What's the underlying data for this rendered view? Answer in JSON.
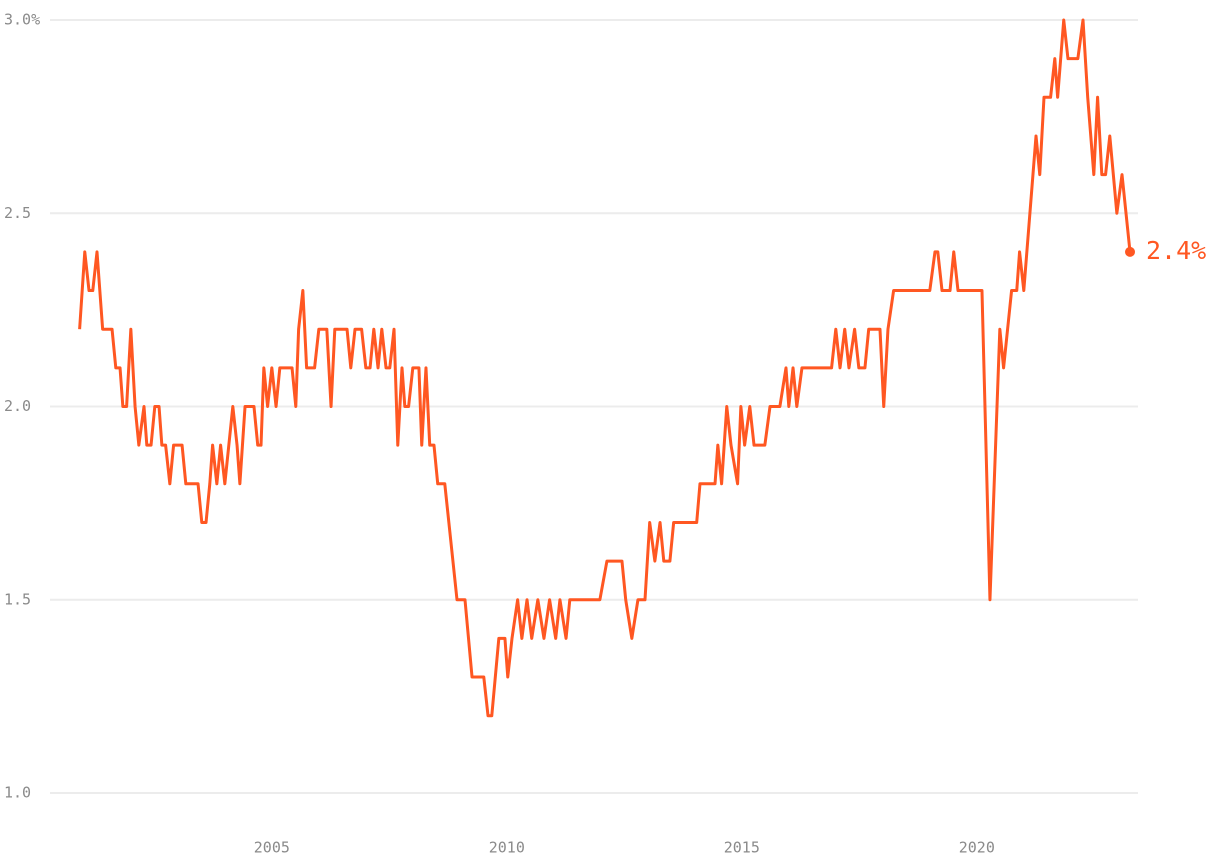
{
  "chart_data": {
    "type": "line",
    "color": "#ff5722",
    "grid": true,
    "xlim": [
      2000.28,
      2023.43
    ],
    "xticks": [
      2005,
      2010,
      2015,
      2020
    ],
    "ylim": [
      1,
      3
    ],
    "yticks": [
      {
        "value": 1,
        "label": "1.0"
      },
      1.5,
      {
        "value": 2,
        "label": "2.0"
      },
      2.5,
      {
        "value": 3,
        "label": "3.0%"
      }
    ],
    "last_value_label": "2.4%",
    "x": [
      2000.91,
      2001.02,
      2001.11,
      2001.19,
      2001.28,
      2001.4,
      2001.6,
      2001.68,
      2001.77,
      2001.83,
      2001.91,
      2002.0,
      2002.09,
      2002.17,
      2002.28,
      2002.34,
      2002.43,
      2002.51,
      2002.6,
      2002.66,
      2002.74,
      2002.83,
      2002.91,
      2003.09,
      2003.17,
      2003.43,
      2003.51,
      2003.6,
      2003.68,
      2003.74,
      2003.83,
      2003.91,
      2004.0,
      2004.17,
      2004.26,
      2004.32,
      2004.43,
      2004.62,
      2004.7,
      2004.77,
      2004.83,
      2004.91,
      2005.0,
      2005.09,
      2005.17,
      2005.43,
      2005.51,
      2005.57,
      2005.66,
      2005.74,
      2005.91,
      2006.0,
      2006.17,
      2006.26,
      2006.34,
      2006.6,
      2006.68,
      2006.77,
      2006.91,
      2007.0,
      2007.09,
      2007.17,
      2007.26,
      2007.34,
      2007.43,
      2007.51,
      2007.6,
      2007.68,
      2007.77,
      2007.83,
      2007.91,
      2008.0,
      2008.13,
      2008.19,
      2008.28,
      2008.36,
      2008.45,
      2008.53,
      2008.68,
      2008.94,
      2009.11,
      2009.26,
      2009.51,
      2009.6,
      2009.68,
      2009.83,
      2009.96,
      2010.02,
      2010.11,
      2010.23,
      2010.32,
      2010.43,
      2010.53,
      2010.66,
      2010.79,
      2010.91,
      2011.04,
      2011.13,
      2011.26,
      2011.34,
      2011.98,
      2012.13,
      2012.45,
      2012.53,
      2012.66,
      2012.79,
      2012.94,
      2013.04,
      2013.15,
      2013.26,
      2013.34,
      2013.47,
      2013.55,
      2014.04,
      2014.11,
      2014.43,
      2014.49,
      2014.57,
      2014.68,
      2014.77,
      2014.91,
      2014.98,
      2015.06,
      2015.17,
      2015.26,
      2015.49,
      2015.6,
      2015.81,
      2015.94,
      2016.0,
      2016.09,
      2016.17,
      2016.28,
      2016.91,
      2017.0,
      2017.09,
      2017.19,
      2017.28,
      2017.4,
      2017.49,
      2017.62,
      2017.7,
      2017.94,
      2018.02,
      2018.11,
      2018.23,
      2019.0,
      2019.11,
      2019.17,
      2019.26,
      2019.43,
      2019.51,
      2019.6,
      2020.11,
      2020.28,
      2020.49,
      2020.57,
      2020.74,
      2020.85,
      2020.91,
      2021.0,
      2021.13,
      2021.26,
      2021.34,
      2021.43,
      2021.57,
      2021.66,
      2021.72,
      2021.85,
      2021.94,
      2022.15,
      2022.26,
      2022.36,
      2022.49,
      2022.57,
      2022.66,
      2022.74,
      2022.83,
      2022.98,
      2023.09,
      2023.26
    ],
    "values": [
      2.2,
      2.4,
      2.3,
      2.3,
      2.4,
      2.2,
      2.2,
      2.1,
      2.1,
      2.0,
      2.0,
      2.2,
      2.0,
      1.9,
      2.0,
      1.9,
      1.9,
      2.0,
      2.0,
      1.9,
      1.9,
      1.8,
      1.9,
      1.9,
      1.8,
      1.8,
      1.7,
      1.7,
      1.8,
      1.9,
      1.8,
      1.9,
      1.8,
      2.0,
      1.9,
      1.8,
      2.0,
      2.0,
      1.9,
      1.9,
      2.1,
      2.0,
      2.1,
      2.0,
      2.1,
      2.1,
      2.0,
      2.2,
      2.3,
      2.1,
      2.1,
      2.2,
      2.2,
      2.0,
      2.2,
      2.2,
      2.1,
      2.2,
      2.2,
      2.1,
      2.1,
      2.2,
      2.1,
      2.2,
      2.1,
      2.1,
      2.2,
      1.9,
      2.1,
      2.0,
      2.0,
      2.1,
      2.1,
      1.9,
      2.1,
      1.9,
      1.9,
      1.8,
      1.8,
      1.5,
      1.5,
      1.3,
      1.3,
      1.2,
      1.2,
      1.4,
      1.4,
      1.3,
      1.4,
      1.5,
      1.4,
      1.5,
      1.4,
      1.5,
      1.4,
      1.5,
      1.4,
      1.5,
      1.4,
      1.5,
      1.5,
      1.6,
      1.6,
      1.5,
      1.4,
      1.5,
      1.5,
      1.7,
      1.6,
      1.7,
      1.6,
      1.6,
      1.7,
      1.7,
      1.8,
      1.8,
      1.9,
      1.8,
      2.0,
      1.9,
      1.8,
      2.0,
      1.9,
      2.0,
      1.9,
      1.9,
      2.0,
      2.0,
      2.1,
      2.0,
      2.1,
      2.0,
      2.1,
      2.1,
      2.2,
      2.1,
      2.2,
      2.1,
      2.2,
      2.1,
      2.1,
      2.2,
      2.2,
      2.0,
      2.2,
      2.3,
      2.3,
      2.4,
      2.4,
      2.3,
      2.3,
      2.4,
      2.3,
      2.3,
      1.5,
      2.2,
      2.1,
      2.3,
      2.3,
      2.4,
      2.3,
      2.5,
      2.7,
      2.6,
      2.8,
      2.8,
      2.9,
      2.8,
      3.0,
      2.9,
      2.9,
      3.0,
      2.8,
      2.6,
      2.8,
      2.6,
      2.6,
      2.7,
      2.5,
      2.6,
      2.4
    ]
  }
}
